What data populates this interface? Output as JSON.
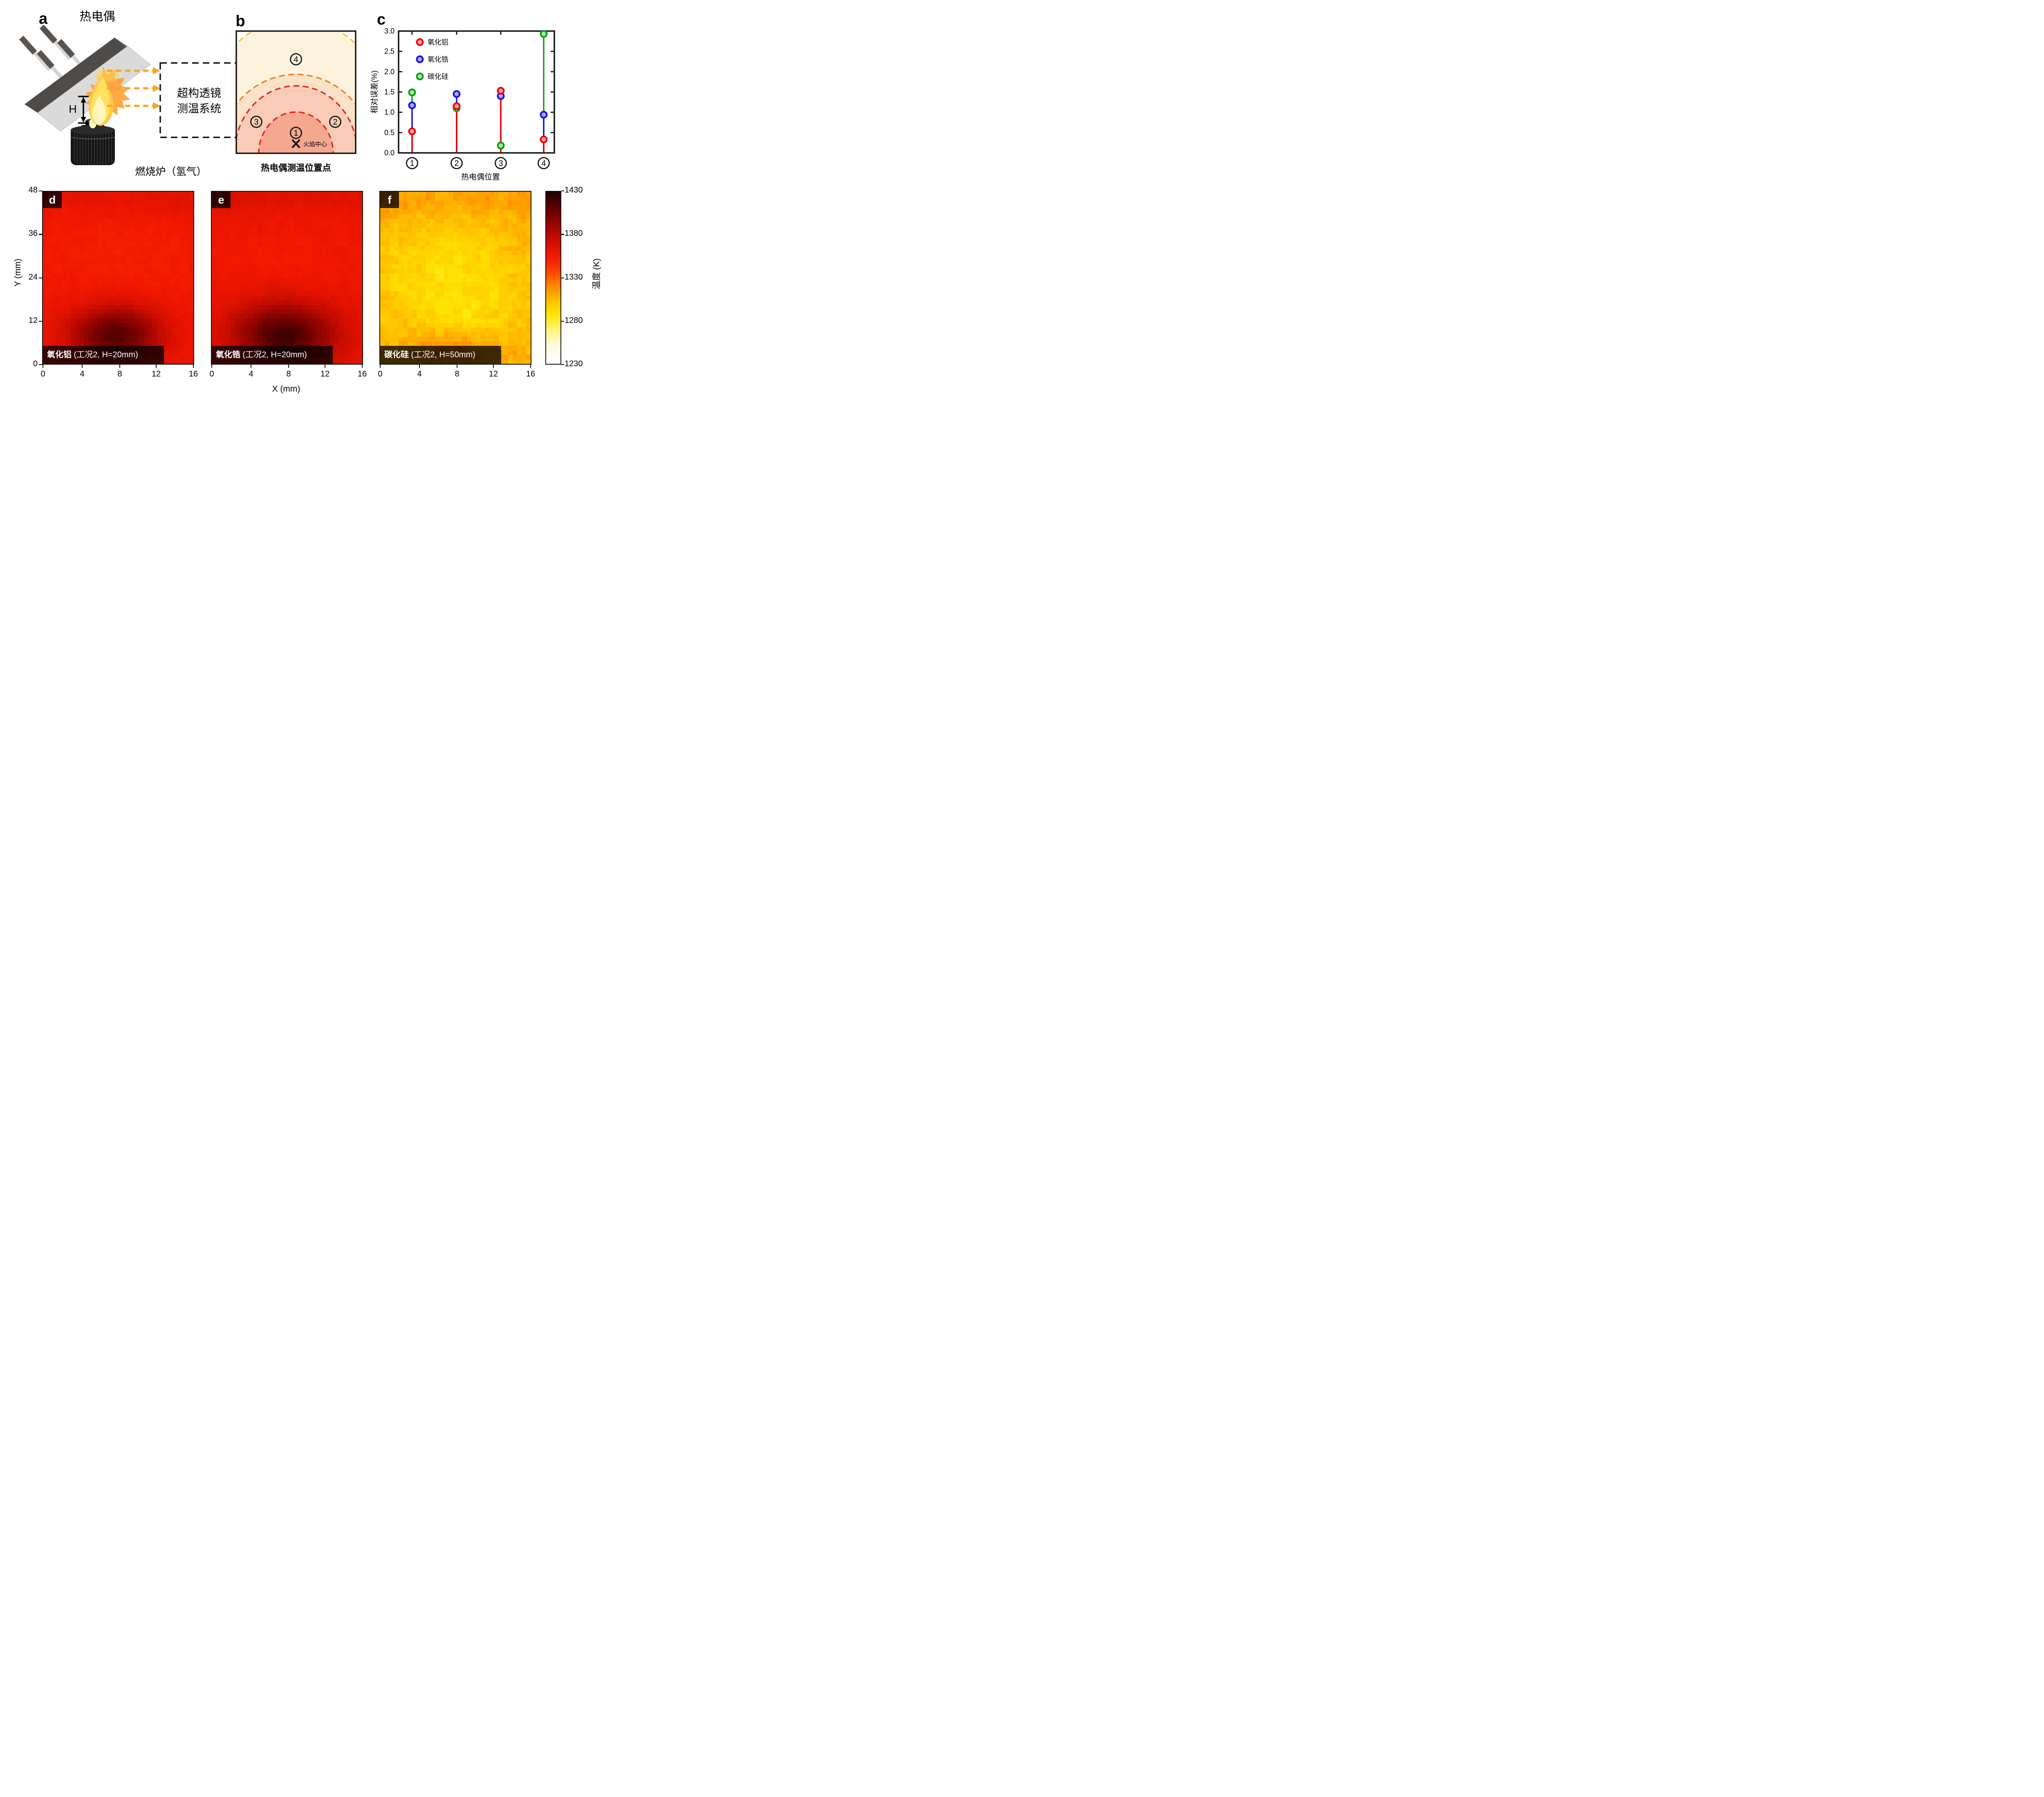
{
  "panel_a": {
    "label": "a",
    "title": "热电偶",
    "h_label": "H",
    "lens_box_line1": "超构透镜",
    "lens_box_line2": "测温系统",
    "furnace_label": "燃烧炉（氢气）",
    "arrow_color": "#f7a823"
  },
  "panel_b": {
    "label": "b",
    "positions": [
      "1",
      "2",
      "3",
      "4"
    ],
    "flame_center_label": "火焰中心",
    "caption": "热电偶测温位置点",
    "arc_colors": {
      "outer_yellow": "#f2c23e",
      "middle_orange": "#f47b20",
      "inner_red": "#e62020"
    },
    "region_fills": [
      "#fdf3dd",
      "#fae3c8",
      "#f8ccb6",
      "#f5a78f"
    ]
  },
  "panel_c": {
    "label": "c",
    "ylabel": "相对误差(%)",
    "xlabel": "热电偶位置",
    "y_ticks": [
      "0.0",
      "0.5",
      "1.0",
      "1.5",
      "2.0",
      "2.5",
      "3.0"
    ],
    "legend": [
      {
        "label": "氧化铝",
        "color": "#f20000",
        "fill": "#f7a1a1"
      },
      {
        "label": "氧化锆",
        "color": "#1414e6",
        "fill": "#a9a9f5"
      },
      {
        "label": "碳化硅",
        "color": "#0f9b13",
        "fill": "#a5eda5"
      }
    ]
  },
  "heatmap_row": {
    "ylabel": "Y (mm)",
    "xlabel": "X (mm)",
    "y_ticks": [
      "48",
      "36",
      "24",
      "12",
      "0"
    ],
    "x_ticks": [
      "0",
      "4",
      "8",
      "12",
      "16"
    ],
    "colorbar_ticks": [
      "1430",
      "1380",
      "1330",
      "1280",
      "1230"
    ],
    "colorbar_label": "温度 (K)",
    "panels": [
      {
        "letter": "d",
        "name": "氧化铝",
        "condition": " (工况2, H=20mm)"
      },
      {
        "letter": "e",
        "name": "氧化锆",
        "condition": " (工况2, H=20mm)"
      },
      {
        "letter": "f",
        "name": "碳化硅",
        "condition": " (工况2, H=50mm)"
      }
    ]
  },
  "chart_data": [
    {
      "id": "c",
      "type": "scatter",
      "subtype": "stem-scatter",
      "xlabel": "热电偶位置",
      "ylabel": "相对误差(%)",
      "ylim": [
        0.0,
        3.0
      ],
      "y_tick_step": 0.5,
      "categories": [
        "①",
        "②",
        "③",
        "④"
      ],
      "series": [
        {
          "name": "氧化铝",
          "color": "#f20000",
          "marker_fill": "#f7a1a1",
          "values": [
            0.53,
            1.15,
            1.53,
            0.33
          ]
        },
        {
          "name": "氧化锆",
          "color": "#1414e6",
          "marker_fill": "#a9a9f5",
          "values": [
            1.17,
            1.45,
            1.4,
            0.94
          ]
        },
        {
          "name": "碳化硅",
          "color": "#0f9b13",
          "marker_fill": "#a5eda5",
          "values": [
            1.49,
            1.1,
            0.18,
            2.93
          ]
        }
      ],
      "draw_order": [
        "碳化硅",
        "氧化锆",
        "氧化铝"
      ],
      "legend_position": "top-left",
      "grid": false
    },
    {
      "id": "d",
      "type": "heatmap",
      "title": "氧化铝 (工况2, H=20mm)",
      "xlabel": "X (mm)",
      "ylabel": "Y (mm)",
      "xlim": [
        0,
        16.5
      ],
      "ylim": [
        0,
        48
      ],
      "x_ticks": [
        0,
        4,
        8,
        12,
        16
      ],
      "y_ticks": [
        0,
        12,
        24,
        36,
        48
      ],
      "temperature_unit": "K",
      "colorbar_range": [
        1230,
        1430
      ],
      "description": "Mostly uniform red field ~1355-1360 K; dark (hot) plume ~1415 K centered near x=8 mm, y=8 mm; slightly hotter top band; slightly cooler mid region.",
      "field_model": {
        "grid": [
          33,
          38
        ],
        "base": 1357,
        "noise_fine": 1.2,
        "noise_coarse": 1.5,
        "seed": 7,
        "blobs": [
          {
            "x": 8,
            "y": 8,
            "sx": 3.4,
            "sy": 5.5,
            "amp": 58
          },
          {
            "x": 8,
            "y": 47,
            "sx": 12,
            "sy": 3,
            "amp": 5
          },
          {
            "x": 9,
            "y": 30,
            "sx": 7,
            "sy": 8,
            "amp": -5
          },
          {
            "x": 15.5,
            "y": 44,
            "sx": 2.5,
            "sy": 2.5,
            "amp": 4
          }
        ]
      }
    },
    {
      "id": "e",
      "type": "heatmap",
      "title": "氧化锆 (工况2, H=20mm)",
      "xlabel": "X (mm)",
      "ylabel": "Y (mm)",
      "xlim": [
        0,
        16.5
      ],
      "ylim": [
        0,
        48
      ],
      "x_ticks": [
        0,
        4,
        8,
        12,
        16
      ],
      "y_ticks": [
        0,
        12,
        24,
        36,
        48
      ],
      "temperature_unit": "K",
      "colorbar_range": [
        1230,
        1430
      ],
      "description": "Similar to panel d: red field ~1360 K with dark hot plume ~1420 K at bottom centre (x=8, y=8) and hotter upper-left corner.",
      "field_model": {
        "grid": [
          33,
          38
        ],
        "base": 1360,
        "noise_fine": 1.2,
        "noise_coarse": 1.5,
        "seed": 13,
        "blobs": [
          {
            "x": 8,
            "y": 8,
            "sx": 3.8,
            "sy": 6,
            "amp": 61
          },
          {
            "x": 8,
            "y": 47,
            "sx": 12,
            "sy": 3,
            "amp": 5
          },
          {
            "x": 9,
            "y": 30,
            "sx": 7,
            "sy": 8,
            "amp": -5
          },
          {
            "x": 0.5,
            "y": 47,
            "sx": 3,
            "sy": 3,
            "amp": 7
          }
        ]
      }
    },
    {
      "id": "f",
      "type": "heatmap",
      "title": "碳化硅 (工况2, H=50mm)",
      "xlabel": "X (mm)",
      "ylabel": "Y (mm)",
      "xlim": [
        0,
        16.5
      ],
      "ylim": [
        0,
        48
      ],
      "x_ticks": [
        0,
        4,
        8,
        12,
        16
      ],
      "y_ticks": [
        0,
        12,
        24,
        36,
        48
      ],
      "temperature_unit": "K",
      "colorbar_range": [
        1230,
        1430
      ],
      "description": "Mottled amber/yellow field ~1290-1310 K; cooler bright-yellow pool ~1280 K near centre; warmer orange band at top and orange-red spot near bottom centre ~1325 K.",
      "field_model": {
        "grid": [
          33,
          38
        ],
        "base": 1304,
        "noise_fine": 3.5,
        "noise_coarse": 4.5,
        "seed": 42,
        "blobs": [
          {
            "x": 8,
            "y": 24,
            "sx": 5.5,
            "sy": 9,
            "amp": -14
          },
          {
            "x": 9,
            "y": 13,
            "sx": 3,
            "sy": 4,
            "amp": -8
          },
          {
            "x": 8,
            "y": 4,
            "sx": 3.2,
            "sy": 3.5,
            "amp": 20
          },
          {
            "x": 8,
            "y": 46,
            "sx": 12,
            "sy": 3,
            "amp": 8
          },
          {
            "x": 0.5,
            "y": 44,
            "sx": 3,
            "sy": 5,
            "amp": 6
          },
          {
            "x": 16,
            "y": 40,
            "sx": 3,
            "sy": 6,
            "amp": 5
          },
          {
            "x": 16,
            "y": 2,
            "sx": 3,
            "sy": 2,
            "amp": 6
          },
          {
            "x": 0.5,
            "y": 2,
            "sx": 2,
            "sy": 2,
            "amp": 5
          }
        ]
      }
    }
  ],
  "colormap_anchors": [
    [
      1230,
      "#ffffff"
    ],
    [
      1252,
      "#fffbe0"
    ],
    [
      1272,
      "#fff468"
    ],
    [
      1288,
      "#ffe400"
    ],
    [
      1302,
      "#ffc400"
    ],
    [
      1316,
      "#ff9800"
    ],
    [
      1330,
      "#ff6000"
    ],
    [
      1344,
      "#fa3000"
    ],
    [
      1356,
      "#f01800"
    ],
    [
      1368,
      "#d91000"
    ],
    [
      1382,
      "#b30900"
    ],
    [
      1396,
      "#8d0400"
    ],
    [
      1410,
      "#650100"
    ],
    [
      1422,
      "#3c0000"
    ],
    [
      1430,
      "#1c0000"
    ]
  ]
}
